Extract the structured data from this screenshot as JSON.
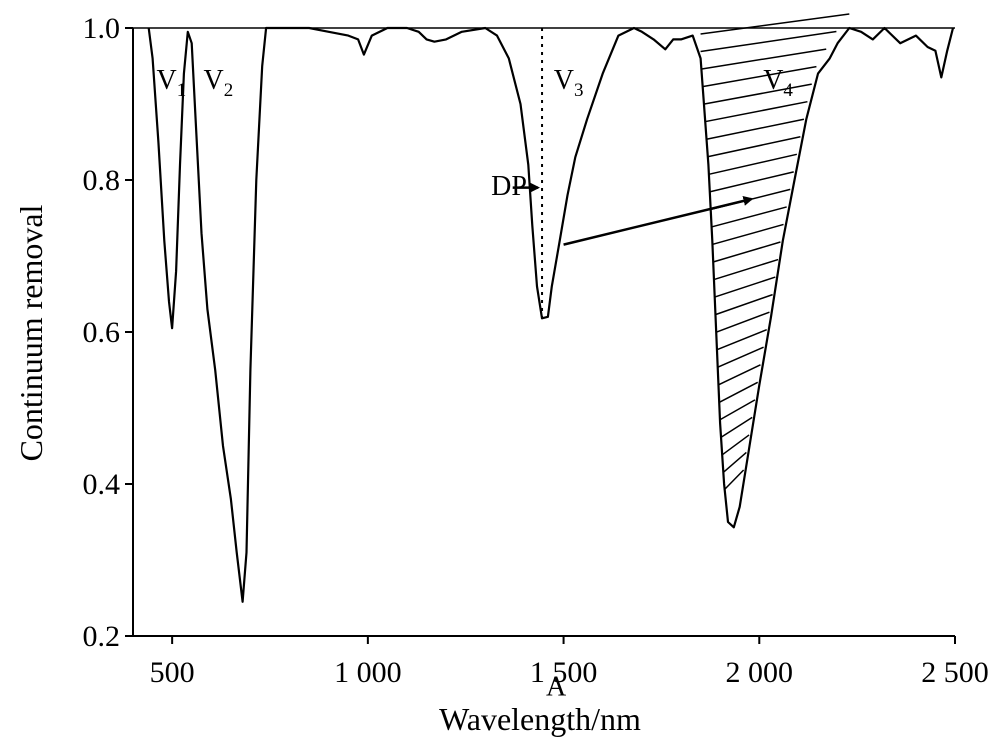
{
  "chart_data": {
    "type": "line",
    "xlabel": "Wavelength/nm",
    "ylabel": "Continuum removal",
    "xlim": [
      400,
      2500
    ],
    "ylim": [
      0.2,
      1.0
    ],
    "x_ticks": [
      {
        "value": 500,
        "label": "500"
      },
      {
        "value": 1000,
        "label": "1 000"
      },
      {
        "value": 1500,
        "label": "1 500"
      },
      {
        "value": 2000,
        "label": "2 000"
      },
      {
        "value": 2500,
        "label": "2 500"
      }
    ],
    "y_ticks": [
      {
        "value": 0.2,
        "label": "0.2"
      },
      {
        "value": 0.4,
        "label": "0.4"
      },
      {
        "value": 0.6,
        "label": "0.6"
      },
      {
        "value": 0.8,
        "label": "0.8"
      },
      {
        "value": 1.0,
        "label": "1.0"
      }
    ],
    "series": [
      {
        "color": "#000000",
        "points": [
          [
            440,
            1.0
          ],
          [
            450,
            0.96
          ],
          [
            465,
            0.85
          ],
          [
            480,
            0.72
          ],
          [
            492,
            0.64
          ],
          [
            500,
            0.605
          ],
          [
            510,
            0.68
          ],
          [
            520,
            0.82
          ],
          [
            530,
            0.94
          ],
          [
            540,
            0.995
          ],
          [
            550,
            0.98
          ],
          [
            560,
            0.88
          ],
          [
            575,
            0.73
          ],
          [
            590,
            0.63
          ],
          [
            610,
            0.55
          ],
          [
            630,
            0.45
          ],
          [
            650,
            0.38
          ],
          [
            665,
            0.31
          ],
          [
            680,
            0.245
          ],
          [
            690,
            0.31
          ],
          [
            700,
            0.55
          ],
          [
            715,
            0.8
          ],
          [
            730,
            0.95
          ],
          [
            740,
            1.0
          ],
          [
            800,
            1.0
          ],
          [
            850,
            1.0
          ],
          [
            900,
            0.995
          ],
          [
            950,
            0.99
          ],
          [
            975,
            0.985
          ],
          [
            990,
            0.965
          ],
          [
            1010,
            0.99
          ],
          [
            1050,
            1.0
          ],
          [
            1100,
            1.0
          ],
          [
            1130,
            0.995
          ],
          [
            1150,
            0.985
          ],
          [
            1170,
            0.982
          ],
          [
            1200,
            0.985
          ],
          [
            1240,
            0.995
          ],
          [
            1300,
            1.0
          ],
          [
            1330,
            0.99
          ],
          [
            1360,
            0.96
          ],
          [
            1390,
            0.9
          ],
          [
            1410,
            0.82
          ],
          [
            1420,
            0.74
          ],
          [
            1432,
            0.66
          ],
          [
            1445,
            0.618
          ],
          [
            1460,
            0.62
          ],
          [
            1470,
            0.66
          ],
          [
            1490,
            0.72
          ],
          [
            1510,
            0.78
          ],
          [
            1530,
            0.83
          ],
          [
            1560,
            0.88
          ],
          [
            1600,
            0.94
          ],
          [
            1640,
            0.99
          ],
          [
            1680,
            1.0
          ],
          [
            1700,
            0.995
          ],
          [
            1730,
            0.985
          ],
          [
            1760,
            0.972
          ],
          [
            1780,
            0.985
          ],
          [
            1800,
            0.985
          ],
          [
            1830,
            0.99
          ],
          [
            1850,
            0.96
          ],
          [
            1870,
            0.82
          ],
          [
            1880,
            0.72
          ],
          [
            1890,
            0.6
          ],
          [
            1900,
            0.48
          ],
          [
            1910,
            0.4
          ],
          [
            1920,
            0.35
          ],
          [
            1935,
            0.343
          ],
          [
            1950,
            0.37
          ],
          [
            1975,
            0.45
          ],
          [
            2000,
            0.53
          ],
          [
            2030,
            0.62
          ],
          [
            2060,
            0.72
          ],
          [
            2090,
            0.8
          ],
          [
            2120,
            0.88
          ],
          [
            2150,
            0.94
          ],
          [
            2180,
            0.96
          ],
          [
            2200,
            0.98
          ],
          [
            2230,
            1.0
          ],
          [
            2260,
            0.995
          ],
          [
            2290,
            0.985
          ],
          [
            2320,
            1.0
          ],
          [
            2360,
            0.98
          ],
          [
            2400,
            0.99
          ],
          [
            2430,
            0.975
          ],
          [
            2450,
            0.97
          ],
          [
            2465,
            0.935
          ],
          [
            2480,
            0.97
          ],
          [
            2495,
            1.0
          ]
        ]
      }
    ],
    "annotations": {
      "v1": {
        "label": "V",
        "sub": "1",
        "x": 460,
        "y": 0.92
      },
      "v2": {
        "label": "V",
        "sub": "2",
        "x": 580,
        "y": 0.92
      },
      "v3": {
        "label": "V",
        "sub": "3",
        "x": 1475,
        "y": 0.92
      },
      "v4": {
        "label": "V",
        "sub": "4",
        "x": 2010,
        "y": 0.92
      },
      "dp": {
        "label": "DP",
        "text_x": 1315,
        "text_y": 0.78,
        "arrow_from": [
          1370,
          0.79
        ],
        "arrow_to": [
          1445,
          0.79
        ],
        "line_x": 1445,
        "line_y": [
          0.618,
          1.0
        ]
      },
      "a": {
        "label": "A",
        "text_x": 1455,
        "text_y": 0.49,
        "arrow_from": [
          1500,
          0.715
        ],
        "arrow_to": [
          1980,
          0.775
        ]
      }
    },
    "hatch": {
      "x_left_top": 1865,
      "x_right_top": 2235,
      "y_top": 1.0,
      "y_bottom": 0.4
    }
  }
}
